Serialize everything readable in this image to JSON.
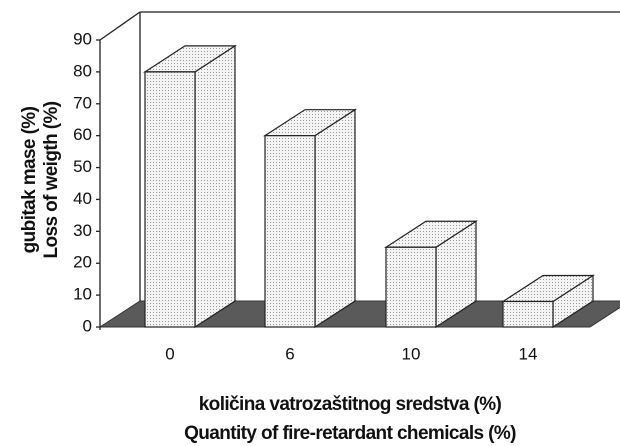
{
  "chart_data": {
    "type": "bar3d",
    "y_label_lines": [
      "gubitak mase (%)",
      "Loss of weigth (%)"
    ],
    "x_label_lines": [
      "količina vatrozaštitnog sredstva (%)",
      "Quantity of fire-retardant chemicals (%)"
    ],
    "categories": [
      "0",
      "6",
      "10",
      "14"
    ],
    "values": [
      80,
      60,
      25,
      8
    ],
    "color": "#eeeeee",
    "floor_color": "#5a5a5a",
    "ylim": [
      0,
      90
    ],
    "yticks": [
      0,
      10,
      20,
      30,
      40,
      50,
      60,
      70,
      80,
      90
    ],
    "grid": false
  }
}
